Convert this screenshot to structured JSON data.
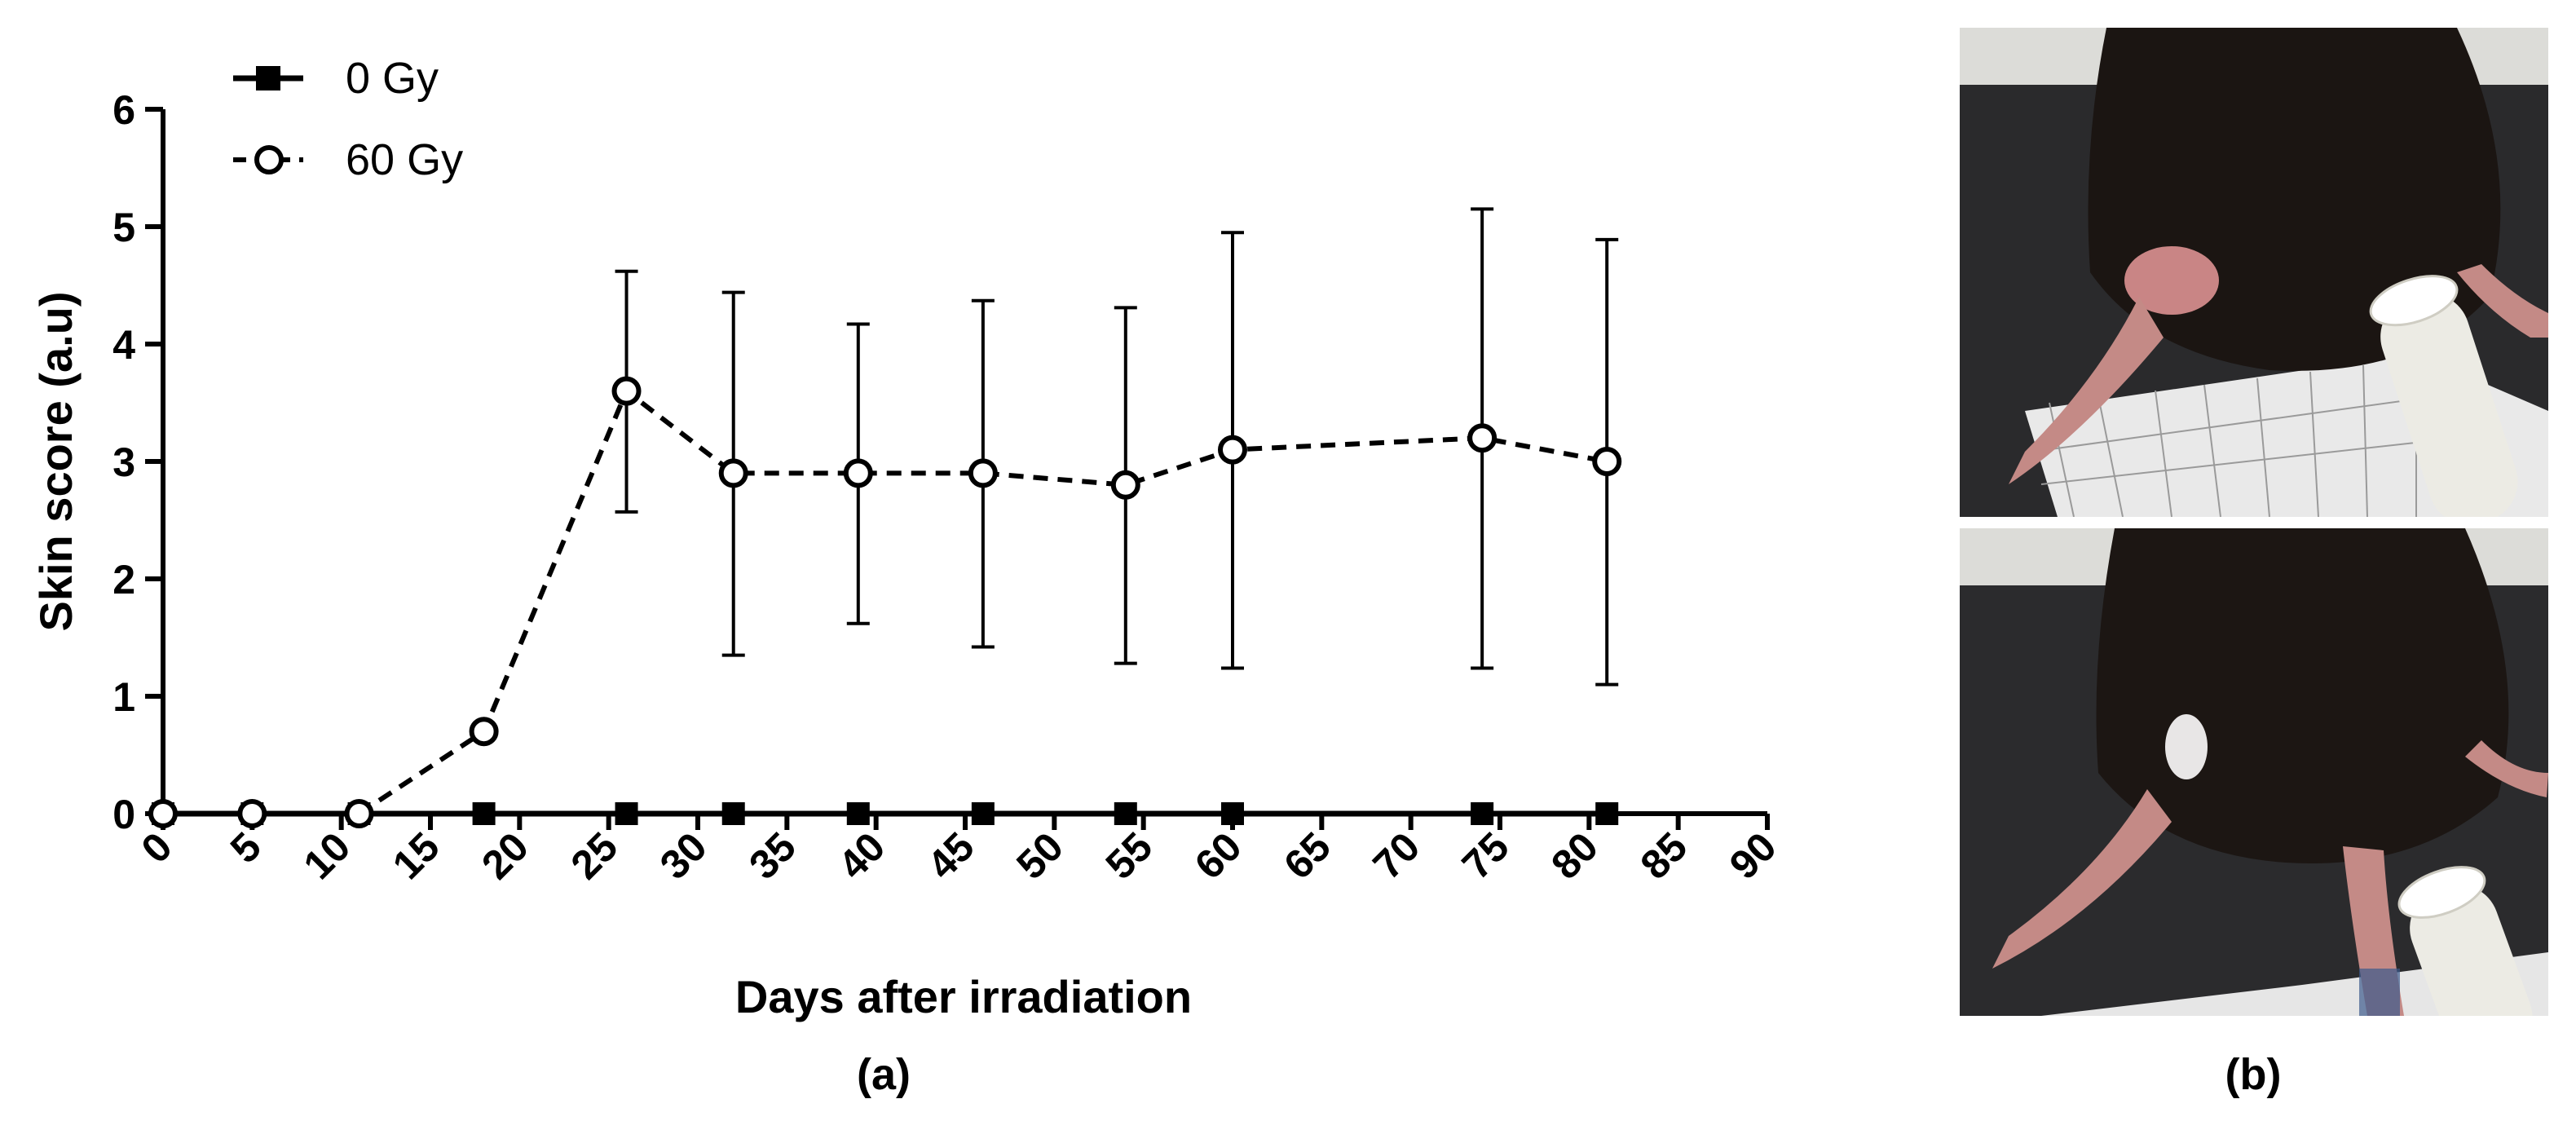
{
  "chart_data": {
    "type": "line",
    "xlabel": "Days after irradiation",
    "ylabel": "Skin score  (a.u)",
    "xlim": [
      0,
      90
    ],
    "ylim": [
      0,
      6
    ],
    "xticks": [
      0,
      5,
      10,
      15,
      20,
      25,
      30,
      35,
      40,
      45,
      50,
      55,
      60,
      65,
      70,
      75,
      80,
      85,
      90
    ],
    "yticks": [
      0,
      1,
      2,
      3,
      4,
      5,
      6
    ],
    "legend_position": "top-left",
    "series": [
      {
        "name": "0 Gy",
        "marker": "filled-square",
        "line": "solid",
        "color": "#000000",
        "x": [
          0,
          5,
          11,
          18,
          26,
          32,
          39,
          46,
          54,
          60,
          74,
          81
        ],
        "y": [
          0,
          0,
          0,
          0,
          0,
          0,
          0,
          0,
          0,
          0,
          0,
          0
        ]
      },
      {
        "name": "60 Gy",
        "marker": "open-circle",
        "line": "dashed",
        "color": "#000000",
        "x": [
          0,
          5,
          11,
          18,
          26,
          32,
          39,
          46,
          54,
          60,
          74,
          81
        ],
        "y": [
          0,
          0,
          0,
          0.7,
          3.6,
          2.9,
          2.9,
          2.9,
          2.8,
          3.1,
          3.2,
          3.0
        ],
        "err_low": [
          0,
          0,
          0,
          0.6,
          2.57,
          1.35,
          1.62,
          1.42,
          1.28,
          1.24,
          1.24,
          1.1
        ],
        "err_high": [
          0,
          0,
          0,
          0.8,
          4.62,
          4.44,
          4.17,
          4.37,
          4.31,
          4.95,
          5.15,
          4.89
        ]
      }
    ]
  },
  "panels": {
    "a_label": "(a)",
    "b_label": "(b)"
  }
}
